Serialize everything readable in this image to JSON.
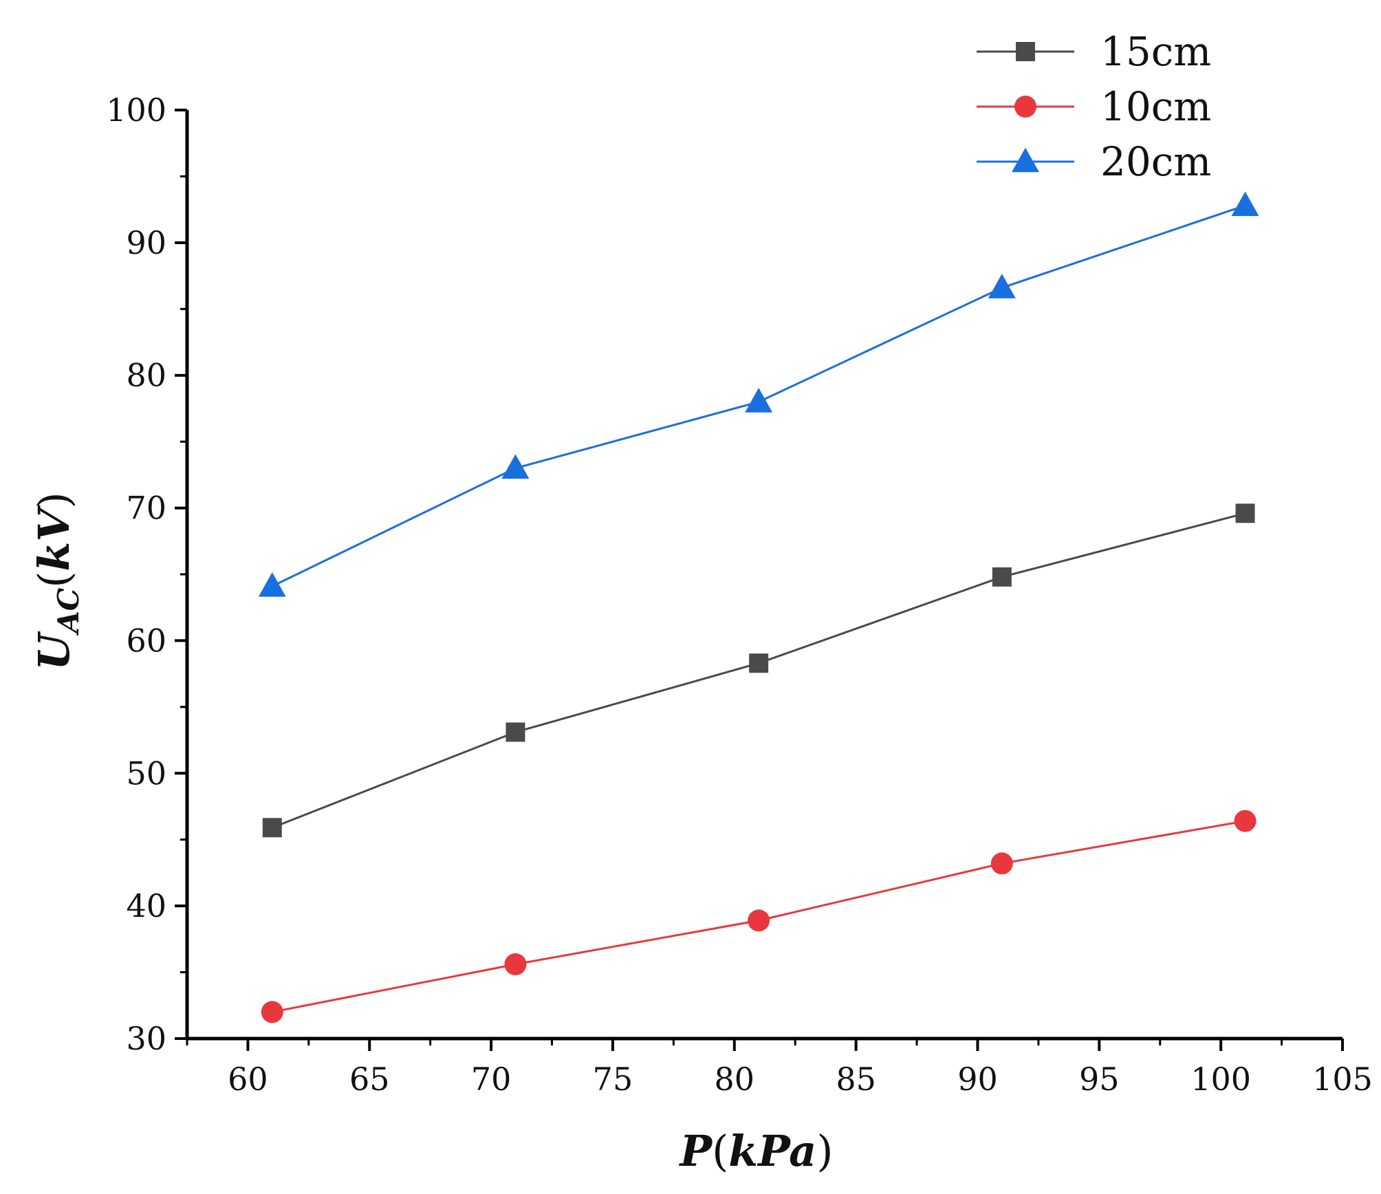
{
  "chart_data": {
    "type": "line",
    "title": "",
    "xlabel": {
      "var": "P",
      "unit": "kPa"
    },
    "ylabel": {
      "var": "U",
      "sub": "AC",
      "unit": "kV"
    },
    "xlim": [
      57.5,
      105
    ],
    "ylim": [
      30,
      100
    ],
    "xticks": [
      60,
      65,
      70,
      75,
      80,
      85,
      90,
      95,
      100,
      105
    ],
    "yticks": [
      30,
      40,
      50,
      60,
      70,
      80,
      90,
      100
    ],
    "grid": false,
    "legend_position": "top-right",
    "x": [
      61,
      71,
      81,
      91,
      101
    ],
    "series": [
      {
        "name": "15cm",
        "marker": "square",
        "color": "#4a4a4a",
        "values": [
          45.9,
          53.1,
          58.3,
          64.8,
          69.6
        ]
      },
      {
        "name": "10cm",
        "marker": "circle",
        "color": "#e8383d",
        "values": [
          32.0,
          35.6,
          38.9,
          43.2,
          46.4
        ]
      },
      {
        "name": "20cm",
        "marker": "triangle",
        "color": "#1a6fdf",
        "values": [
          64.1,
          73.0,
          78.0,
          86.6,
          92.8
        ]
      }
    ]
  }
}
